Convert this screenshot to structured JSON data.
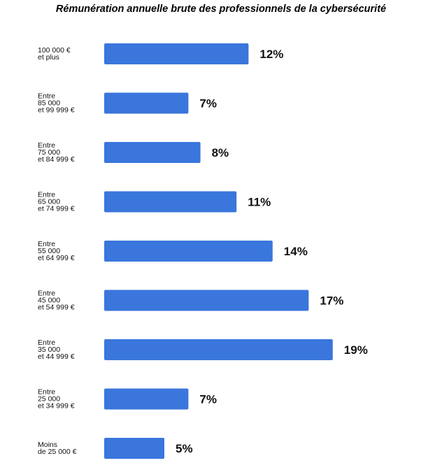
{
  "chart_data": {
    "type": "bar",
    "orientation": "horizontal",
    "title": "Rémunération annuelle brute des professionnels de la cybersécurité",
    "xlabel": "",
    "ylabel": "",
    "xlim": [
      0,
      19
    ],
    "grid": false,
    "legend": "none",
    "bar_color": "#3a76dc",
    "categories": [
      [
        "100 000 €",
        "et plus"
      ],
      [
        "Entre",
        "85 000",
        "et 99 999 €"
      ],
      [
        "Entre",
        "75 000",
        "et 84 999 €"
      ],
      [
        "Entre",
        "65 000",
        "et 74 999 €"
      ],
      [
        "Entre",
        "55 000",
        "et 64 999 €"
      ],
      [
        "Entre",
        "45 000",
        "et 54 999 €"
      ],
      [
        "Entre",
        "35 000",
        "et 44 999 €"
      ],
      [
        "Entre",
        "25 000",
        "et 34 999 €"
      ],
      [
        "Moins",
        "de 25 000 €"
      ]
    ],
    "values": [
      12,
      7,
      8,
      11,
      14,
      17,
      19,
      7,
      5
    ],
    "value_labels": [
      "12%",
      "7%",
      "8%",
      "11%",
      "14%",
      "17%",
      "19%",
      "7%",
      "5%"
    ]
  }
}
